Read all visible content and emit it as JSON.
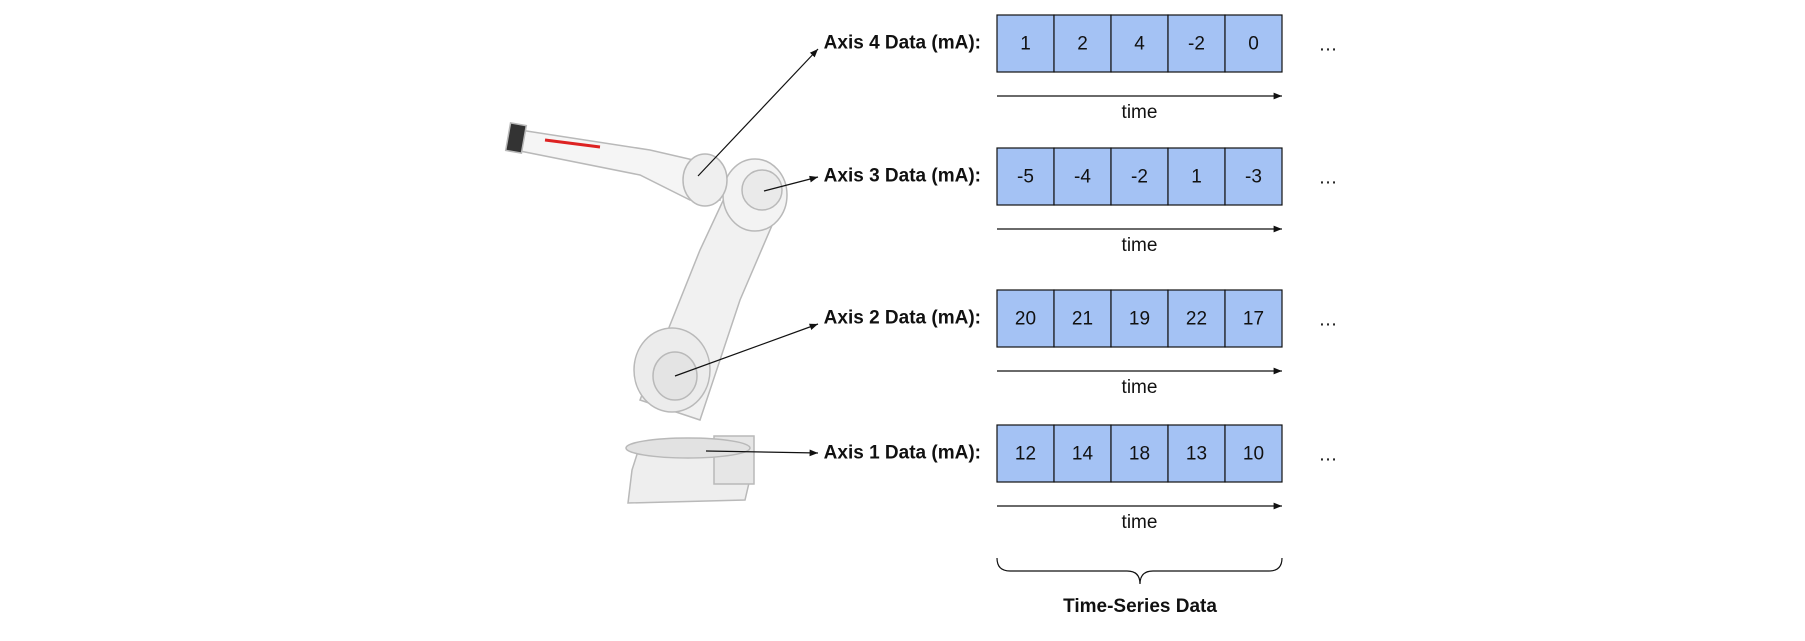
{
  "rows": [
    {
      "label": "Axis 4 Data (mA):",
      "values": [
        1,
        2,
        4,
        -2,
        0
      ],
      "time_label": "time",
      "ellipsis": "…"
    },
    {
      "label": "Axis 3 Data (mA):",
      "values": [
        -5,
        -4,
        -2,
        1,
        -3
      ],
      "time_label": "time",
      "ellipsis": "…"
    },
    {
      "label": "Axis 2 Data (mA):",
      "values": [
        20,
        21,
        19,
        22,
        17
      ],
      "time_label": "time",
      "ellipsis": "…"
    },
    {
      "label": "Axis 1 Data (mA):",
      "values": [
        12,
        14,
        18,
        13,
        10
      ],
      "time_label": "time",
      "ellipsis": "…"
    }
  ],
  "footer": {
    "label": "Time-Series Data"
  }
}
